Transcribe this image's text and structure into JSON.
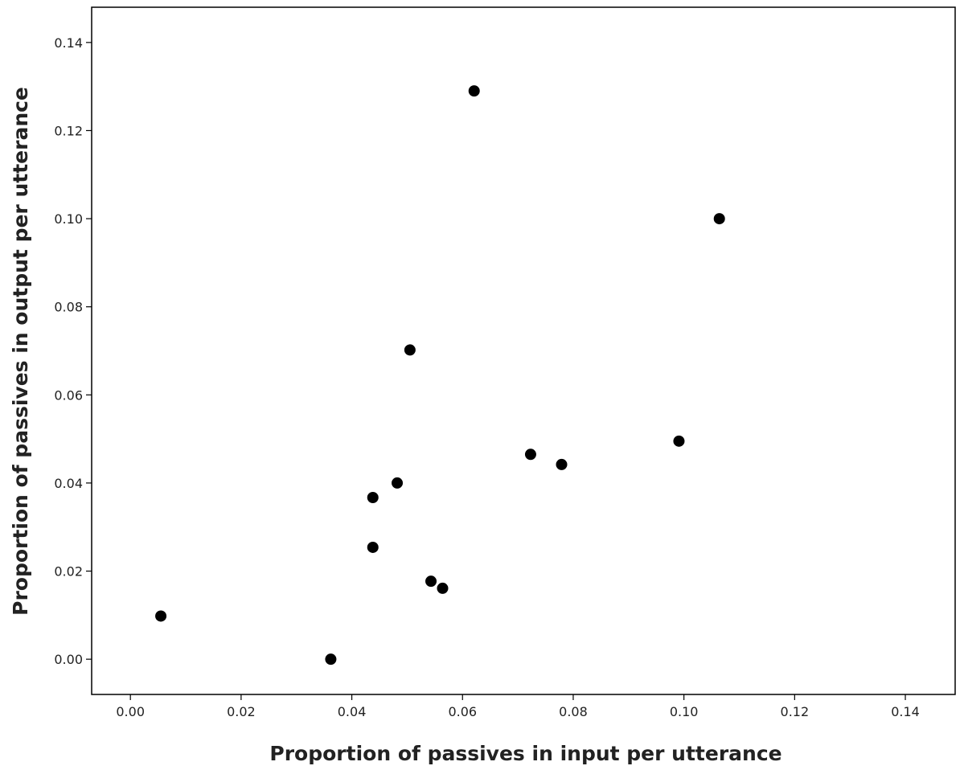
{
  "chart_data": {
    "type": "scatter",
    "title": "",
    "xlabel": "Proportion of passives in input per utterance",
    "ylabel": "Proportion of passives in output per utterance",
    "xlim": [
      -0.007,
      0.149
    ],
    "ylim": [
      -0.008,
      0.148
    ],
    "x_ticks": [
      "0.00",
      "0.02",
      "0.04",
      "0.06",
      "0.08",
      "0.10",
      "0.12",
      "0.14"
    ],
    "y_ticks": [
      "0.00",
      "0.02",
      "0.04",
      "0.06",
      "0.08",
      "0.10",
      "0.12",
      "0.14"
    ],
    "grid": false,
    "marker_color": "#000000",
    "points": [
      {
        "x": 0.0055,
        "y": 0.0098
      },
      {
        "x": 0.0362,
        "y": 0.0
      },
      {
        "x": 0.0438,
        "y": 0.0367
      },
      {
        "x": 0.0438,
        "y": 0.0254
      },
      {
        "x": 0.0482,
        "y": 0.04
      },
      {
        "x": 0.0505,
        "y": 0.0702
      },
      {
        "x": 0.0543,
        "y": 0.0177
      },
      {
        "x": 0.0564,
        "y": 0.0161
      },
      {
        "x": 0.0621,
        "y": 0.129
      },
      {
        "x": 0.0723,
        "y": 0.0465
      },
      {
        "x": 0.0779,
        "y": 0.0442
      },
      {
        "x": 0.0991,
        "y": 0.0495
      },
      {
        "x": 0.1064,
        "y": 0.1
      }
    ]
  }
}
